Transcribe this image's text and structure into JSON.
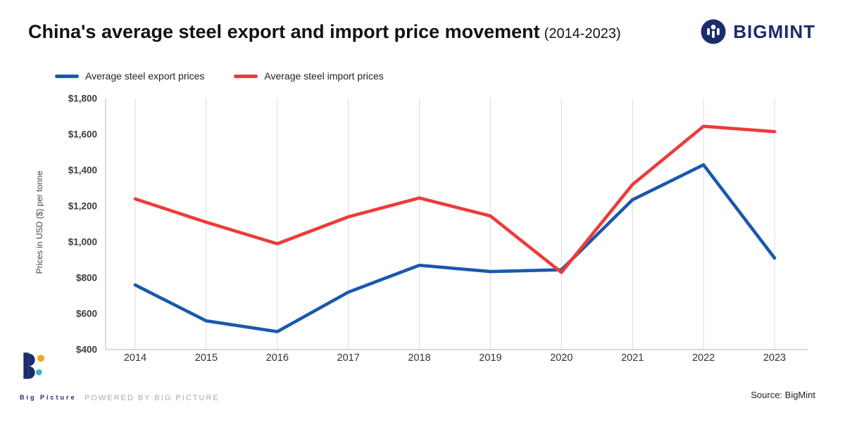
{
  "header": {
    "title": "China's average steel export and import price movement",
    "title_suffix": "(2014-2023)",
    "brand": "BIGMINT"
  },
  "chart_data": {
    "type": "line",
    "title": "China's average steel export and import price movement (2014-2023)",
    "categories": [
      "2014",
      "2015",
      "2016",
      "2017",
      "2018",
      "2019",
      "2020",
      "2021",
      "2022",
      "2023"
    ],
    "series": [
      {
        "name": "Average steel export prices",
        "color": "#1a58ad",
        "values": [
          760,
          560,
          500,
          720,
          870,
          835,
          845,
          1235,
          1430,
          910
        ]
      },
      {
        "name": "Average steel import prices",
        "color": "#ee3b38",
        "values": [
          1240,
          1110,
          990,
          1140,
          1245,
          1145,
          830,
          1320,
          1645,
          1615
        ]
      }
    ],
    "xlabel": "",
    "ylabel": "Prices in USD ($) per tonne",
    "ylim": [
      400,
      1800
    ],
    "ytick_step": 200,
    "ytick_prefix": "$",
    "grid": "vertical",
    "legend_position": "top-left"
  },
  "colors": {
    "brand_navy": "#1b2d6b",
    "grid": "#d9dbde",
    "axis": "#bfc3c8",
    "accent_orange": "#f5a623",
    "accent_teal": "#3bb3c3"
  },
  "footer": {
    "logo_text": "Big Picture",
    "powered_by": "POWERED BY BIG PICTURE",
    "source": "Source: BigMint"
  }
}
